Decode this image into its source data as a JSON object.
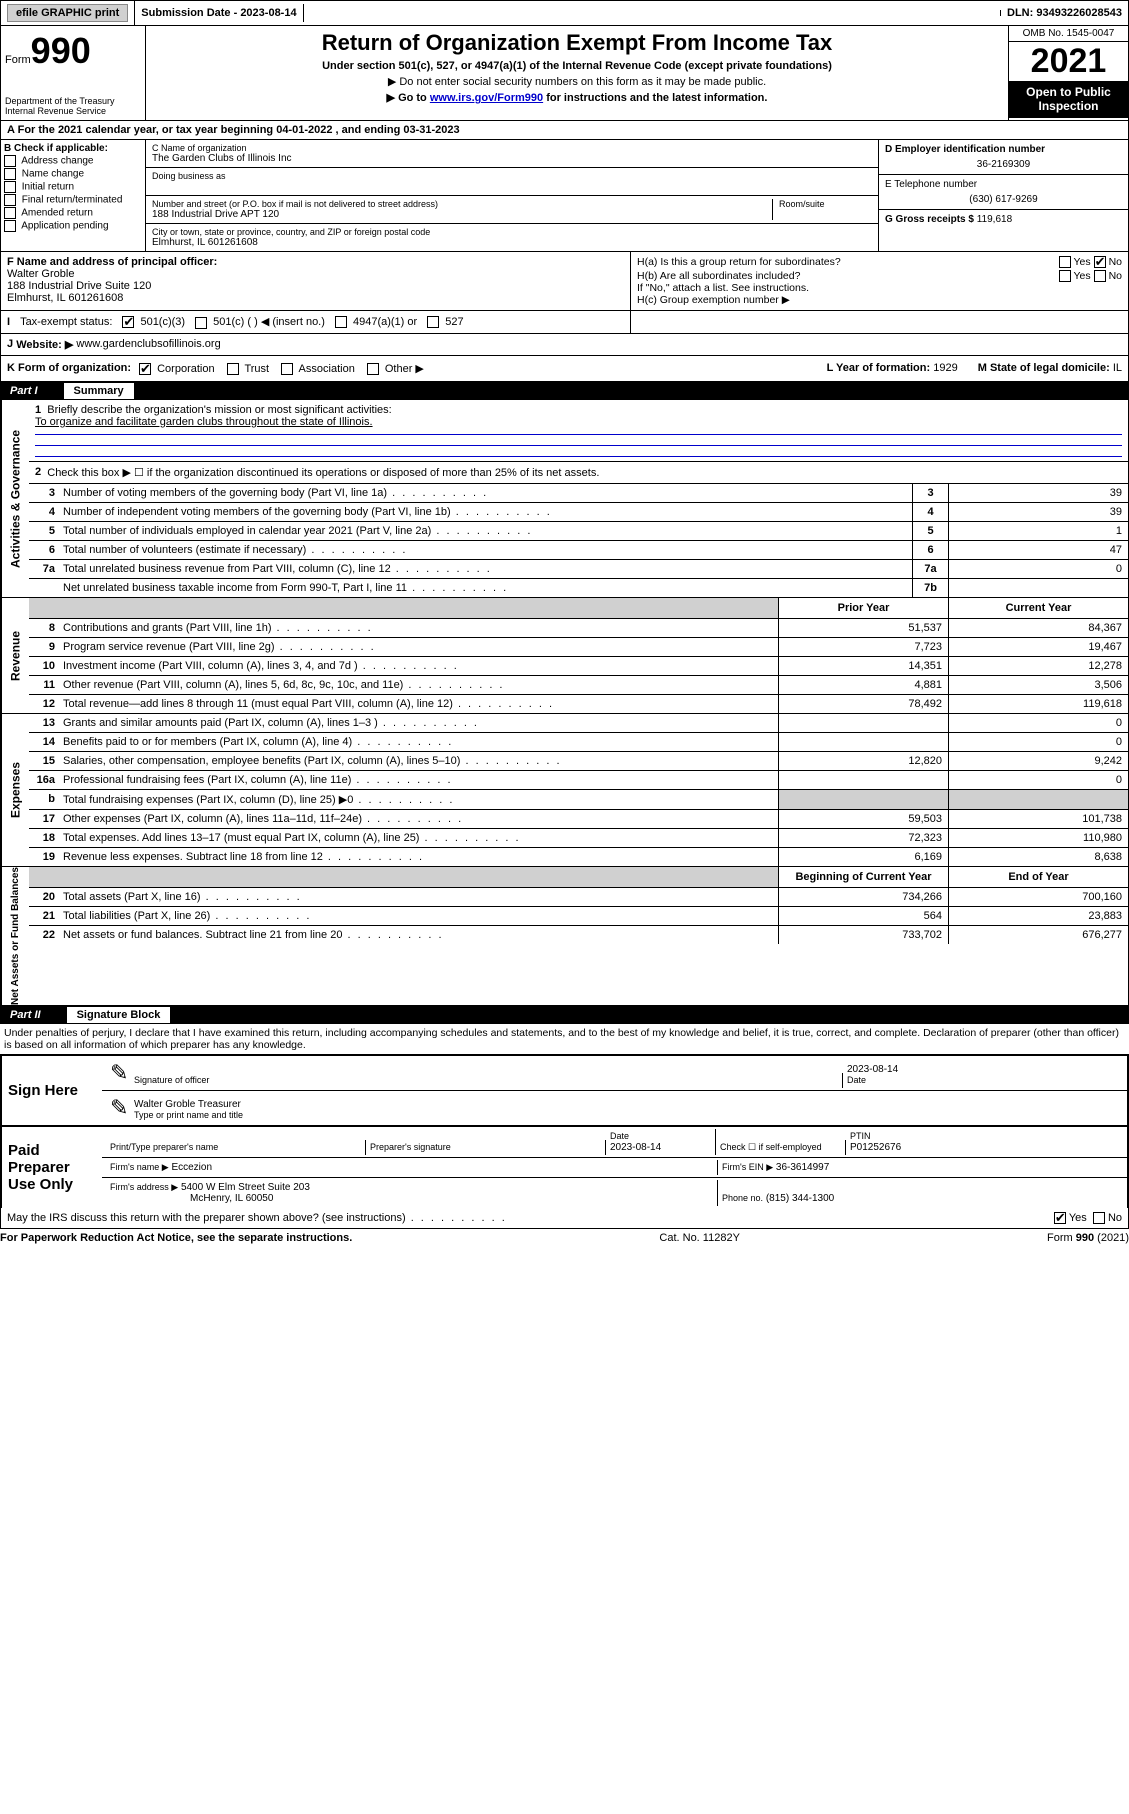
{
  "top": {
    "efile_label": "efile GRAPHIC print",
    "submission": "Submission Date - 2023-08-14",
    "dln": "DLN: 93493226028543"
  },
  "header": {
    "form_word": "Form",
    "form_num": "990",
    "dept1": "Department of the Treasury",
    "dept2": "Internal Revenue Service",
    "title": "Return of Organization Exempt From Income Tax",
    "sub": "Under section 501(c), 527, or 4947(a)(1) of the Internal Revenue Code (except private foundations)",
    "note1": "▶ Do not enter social security numbers on this form as it may be made public.",
    "note2_pre": "▶ Go to ",
    "note2_link": "www.irs.gov/Form990",
    "note2_post": " for instructions and the latest information.",
    "omb": "OMB No. 1545-0047",
    "year": "2021",
    "open": "Open to Public Inspection"
  },
  "a_line": "For the 2021 calendar year, or tax year beginning 04-01-2022   , and ending 03-31-2023",
  "box_b": {
    "title": "B Check if applicable:",
    "opts": [
      "Address change",
      "Name change",
      "Initial return",
      "Final return/terminated",
      "Amended return",
      "Application pending"
    ]
  },
  "box_c": {
    "label_name": "C Name of organization",
    "org": "The Garden Clubs of Illinois Inc",
    "dba_label": "Doing business as",
    "addr_label": "Number and street (or P.O. box if mail is not delivered to street address)",
    "room_label": "Room/suite",
    "addr": "188 Industrial Drive APT 120",
    "city_label": "City or town, state or province, country, and ZIP or foreign postal code",
    "city": "Elmhurst, IL  601261608"
  },
  "box_d": {
    "label": "D Employer identification number",
    "ein": "36-2169309"
  },
  "box_e": {
    "label": "E Telephone number",
    "phone": "(630) 617-9269"
  },
  "box_g": {
    "label": "G Gross receipts $",
    "amount": "119,618"
  },
  "box_f": {
    "label": "F Name and address of principal officer:",
    "name": "Walter Groble",
    "addr1": "188 Industrial Drive Suite 120",
    "addr2": "Elmhurst, IL  601261608"
  },
  "box_h": {
    "a": "H(a)  Is this a group return for subordinates?",
    "b": "H(b)  Are all subordinates included?",
    "note": "If \"No,\" attach a list. See instructions.",
    "c": "H(c)  Group exemption number ▶",
    "yes": "Yes",
    "no": "No"
  },
  "row_i": {
    "label": "I",
    "tax": "Tax-exempt status:",
    "c3": "501(c)(3)",
    "c": "501(c) (  ) ◀ (insert no.)",
    "a4947": "4947(a)(1) or",
    "s527": "527"
  },
  "row_j": {
    "label": "J",
    "website": "Website: ▶",
    "url": "www.gardenclubsofillinois.org"
  },
  "row_k": {
    "label": "K Form of organization:",
    "opts": [
      "Corporation",
      "Trust",
      "Association",
      "Other ▶"
    ]
  },
  "row_l": {
    "label": "L Year of formation:",
    "val": "1929"
  },
  "row_m": {
    "label": "M State of legal domicile:",
    "val": "IL"
  },
  "part1": {
    "label": "Part I",
    "title": "Summary"
  },
  "summary": {
    "governance_label": "Activities & Governance",
    "revenue_label": "Revenue",
    "expenses_label": "Expenses",
    "netassets_label": "Net Assets or Fund Balances",
    "line1": "Briefly describe the organization's mission or most significant activities:",
    "mission": "To organize and facilitate garden clubs throughout the state of Illinois.",
    "line2": "Check this box ▶ ☐ if the organization discontinued its operations or disposed of more than 25% of its net assets.",
    "lines_single": [
      {
        "n": "3",
        "d": "Number of voting members of the governing body (Part VI, line 1a)",
        "nc": "3",
        "v": "39"
      },
      {
        "n": "4",
        "d": "Number of independent voting members of the governing body (Part VI, line 1b)",
        "nc": "4",
        "v": "39"
      },
      {
        "n": "5",
        "d": "Total number of individuals employed in calendar year 2021 (Part V, line 2a)",
        "nc": "5",
        "v": "1"
      },
      {
        "n": "6",
        "d": "Total number of volunteers (estimate if necessary)",
        "nc": "6",
        "v": "47"
      },
      {
        "n": "7a",
        "d": "Total unrelated business revenue from Part VIII, column (C), line 12",
        "nc": "7a",
        "v": "0"
      },
      {
        "n": "",
        "d": "Net unrelated business taxable income from Form 990-T, Part I, line 11",
        "nc": "7b",
        "v": ""
      }
    ],
    "prior_year": "Prior Year",
    "current_year": "Current Year",
    "revenue_lines": [
      {
        "n": "8",
        "d": "Contributions and grants (Part VIII, line 1h)",
        "p": "51,537",
        "c": "84,367"
      },
      {
        "n": "9",
        "d": "Program service revenue (Part VIII, line 2g)",
        "p": "7,723",
        "c": "19,467"
      },
      {
        "n": "10",
        "d": "Investment income (Part VIII, column (A), lines 3, 4, and 7d )",
        "p": "14,351",
        "c": "12,278"
      },
      {
        "n": "11",
        "d": "Other revenue (Part VIII, column (A), lines 5, 6d, 8c, 9c, 10c, and 11e)",
        "p": "4,881",
        "c": "3,506"
      },
      {
        "n": "12",
        "d": "Total revenue—add lines 8 through 11 (must equal Part VIII, column (A), line 12)",
        "p": "78,492",
        "c": "119,618"
      }
    ],
    "expense_lines": [
      {
        "n": "13",
        "d": "Grants and similar amounts paid (Part IX, column (A), lines 1–3 )",
        "p": "",
        "c": "0"
      },
      {
        "n": "14",
        "d": "Benefits paid to or for members (Part IX, column (A), line 4)",
        "p": "",
        "c": "0"
      },
      {
        "n": "15",
        "d": "Salaries, other compensation, employee benefits (Part IX, column (A), lines 5–10)",
        "p": "12,820",
        "c": "9,242"
      },
      {
        "n": "16a",
        "d": "Professional fundraising fees (Part IX, column (A), line 11e)",
        "p": "",
        "c": "0"
      },
      {
        "n": "b",
        "d": "Total fundraising expenses (Part IX, column (D), line 25) ▶0",
        "p": "shaded",
        "c": "shaded"
      },
      {
        "n": "17",
        "d": "Other expenses (Part IX, column (A), lines 11a–11d, 11f–24e)",
        "p": "59,503",
        "c": "101,738"
      },
      {
        "n": "18",
        "d": "Total expenses. Add lines 13–17 (must equal Part IX, column (A), line 25)",
        "p": "72,323",
        "c": "110,980"
      },
      {
        "n": "19",
        "d": "Revenue less expenses. Subtract line 18 from line 12",
        "p": "6,169",
        "c": "8,638"
      }
    ],
    "begin_year": "Beginning of Current Year",
    "end_year": "End of Year",
    "balance_lines": [
      {
        "n": "20",
        "d": "Total assets (Part X, line 16)",
        "p": "734,266",
        "c": "700,160"
      },
      {
        "n": "21",
        "d": "Total liabilities (Part X, line 26)",
        "p": "564",
        "c": "23,883"
      },
      {
        "n": "22",
        "d": "Net assets or fund balances. Subtract line 21 from line 20",
        "p": "733,702",
        "c": "676,277"
      }
    ]
  },
  "part2": {
    "label": "Part II",
    "title": "Signature Block"
  },
  "sig": {
    "perjury": "Under penalties of perjury, I declare that I have examined this return, including accompanying schedules and statements, and to the best of my knowledge and belief, it is true, correct, and complete. Declaration of preparer (other than officer) is based on all information of which preparer has any knowledge.",
    "sign_here": "Sign Here",
    "sig_officer": "Signature of officer",
    "date": "Date",
    "date_val": "2023-08-14",
    "officer_name": "Walter Groble  Treasurer",
    "type_name": "Type or print name and title",
    "paid_prep": "Paid Preparer Use Only",
    "print_name": "Print/Type preparer's name",
    "prep_sig": "Preparer's signature",
    "date2": "Date",
    "date2_val": "2023-08-14",
    "check_if": "Check ☐ if self-employed",
    "ptin_label": "PTIN",
    "ptin": "P01252676",
    "firm_name_label": "Firm's name   ▶",
    "firm_name": "Eccezion",
    "firm_ein_label": "Firm's EIN ▶",
    "firm_ein": "36-3614997",
    "firm_addr_label": "Firm's address ▶",
    "firm_addr1": "5400 W Elm Street Suite 203",
    "firm_addr2": "McHenry, IL  60050",
    "phone_label": "Phone no.",
    "phone": "(815) 344-1300",
    "may_discuss": "May the IRS discuss this return with the preparer shown above? (see instructions)"
  },
  "footer": {
    "pra": "For Paperwork Reduction Act Notice, see the separate instructions.",
    "cat": "Cat. No. 11282Y",
    "form": "Form 990 (2021)"
  },
  "colors": {
    "link": "#0000cc",
    "black": "#000000",
    "shaded": "#d0d0d0"
  }
}
